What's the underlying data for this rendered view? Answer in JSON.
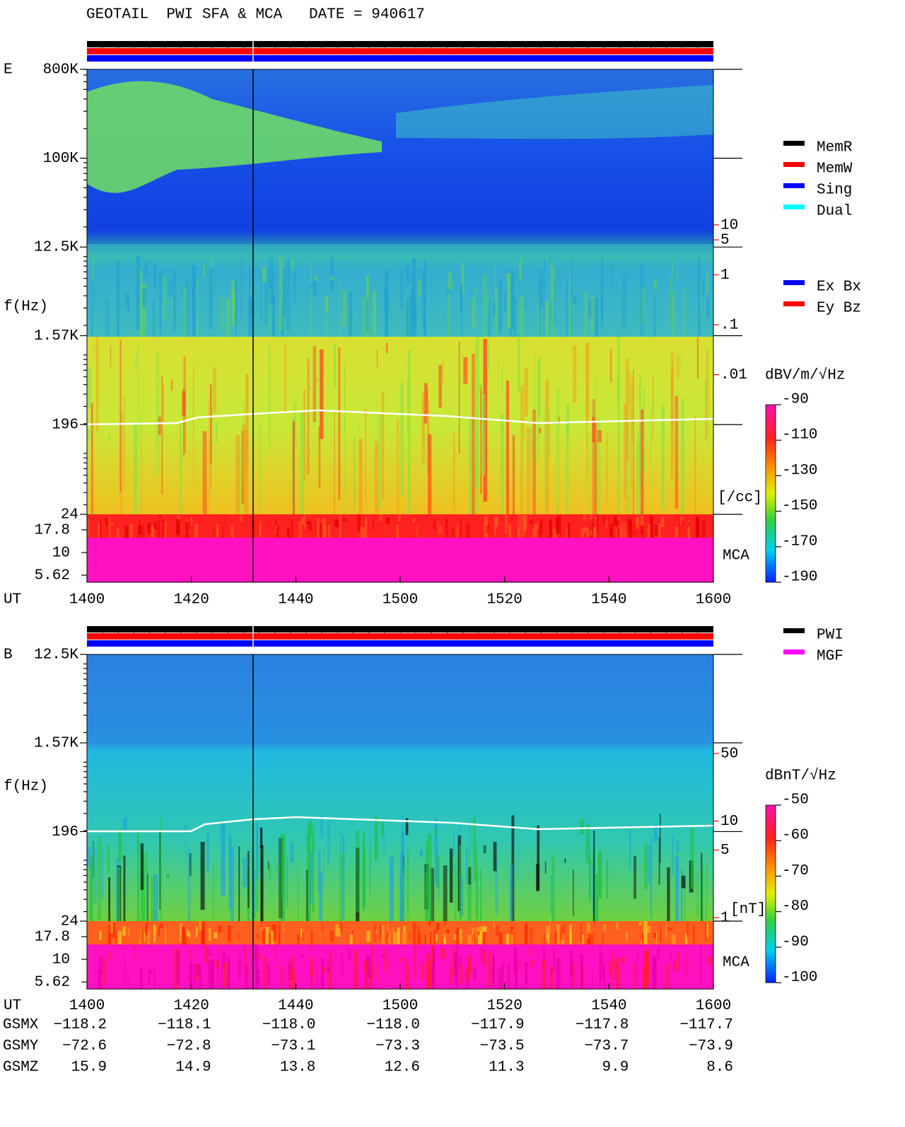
{
  "title": "GEOTAIL  PWI SFA & MCA   DATE = 940617",
  "chart_data": [
    {
      "type": "spectrogram",
      "panel_label": "E",
      "y_label": "f(Hz)",
      "x_label": "UT",
      "log_y": true,
      "ylim": [
        24,
        800000
      ],
      "yticks": [
        {
          "value": 800000,
          "label": "800K"
        },
        {
          "value": 100000,
          "label": "100K"
        },
        {
          "value": 12500,
          "label": "12.5K"
        },
        {
          "value": 1570,
          "label": "1.57K"
        },
        196,
        24
      ],
      "mca_label": "MCA",
      "mca_lim": [
        4.7,
        26.4
      ],
      "mca_ticks": [
        17.8,
        10,
        5.62
      ],
      "y2lim": [
        1.6e-05,
        13000
      ],
      "y2_log": true,
      "y2_color": "#ff0000",
      "y2_label": "[/cc]",
      "y2ticks": [
        10,
        5,
        1,
        {
          "value": 0.1,
          "label": ".1"
        },
        {
          "value": 0.01,
          "label": ".01"
        }
      ],
      "xticks": [
        "1400",
        "1420",
        "1440",
        "1500",
        "1520",
        "1540",
        "1600"
      ],
      "colorbar": {
        "label": "dBV/m/√Hz",
        "lim": [
          -190,
          -90
        ],
        "ticks": [
          -90,
          -110,
          -130,
          -150,
          -170,
          -190
        ]
      },
      "legends": [
        [
          {
            "name": "MemR",
            "color": "#000000"
          },
          {
            "name": "MemW",
            "color": "#ff0000"
          },
          {
            "name": "Sing",
            "color": "#0000ff"
          },
          {
            "name": "Dual",
            "color": "#00ffff"
          }
        ],
        [
          {
            "name": "Ex Bx",
            "color": "#0000ff"
          },
          {
            "name": "Ey Bz",
            "color": "#ff0000"
          }
        ]
      ]
    },
    {
      "type": "spectrogram",
      "panel_label": "B",
      "y_label": "f(Hz)",
      "x_label": "UT",
      "log_y": true,
      "ylim": [
        24,
        12500
      ],
      "yticks": [
        {
          "value": 12500,
          "label": "12.5K"
        },
        {
          "value": 1570,
          "label": "1.57K"
        },
        196,
        24
      ],
      "mca_label": "MCA",
      "mca_lim": [
        4.7,
        26.4
      ],
      "mca_ticks": [
        17.8,
        10,
        5.62
      ],
      "y2lim": [
        0.92,
        530
      ],
      "y2_log": true,
      "y2_color": "#ff0000",
      "y2_label": "[nT]",
      "y2ticks": [
        50,
        10,
        5,
        1
      ],
      "xticks": [
        "1400",
        "1420",
        "1440",
        "1500",
        "1520",
        "1540",
        "1600"
      ],
      "colorbar": {
        "label": "dBnT/√Hz",
        "lim": [
          -100,
          -50
        ],
        "ticks": [
          -50,
          -60,
          -70,
          -80,
          -90,
          -100
        ]
      },
      "legends": [
        [
          {
            "name": "PWI",
            "color": "#000000"
          },
          {
            "name": "MGF",
            "color": "#ff00ff"
          }
        ]
      ]
    }
  ],
  "ephemeris": {
    "rows": [
      {
        "name": "GSMX",
        "values": [
          "−118.2",
          "−118.1",
          "−118.0",
          "−118.0",
          "−117.9",
          "−117.8",
          "−117.7"
        ]
      },
      {
        "name": "GSMY",
        "values": [
          "−72.6",
          "−72.8",
          "−73.1",
          "−73.3",
          "−73.5",
          "−73.7",
          "−73.9"
        ]
      },
      {
        "name": "GSMZ",
        "values": [
          "15.9",
          "14.9",
          "13.8",
          "12.6",
          "11.3",
          "9.9",
          "8.6"
        ]
      }
    ]
  }
}
